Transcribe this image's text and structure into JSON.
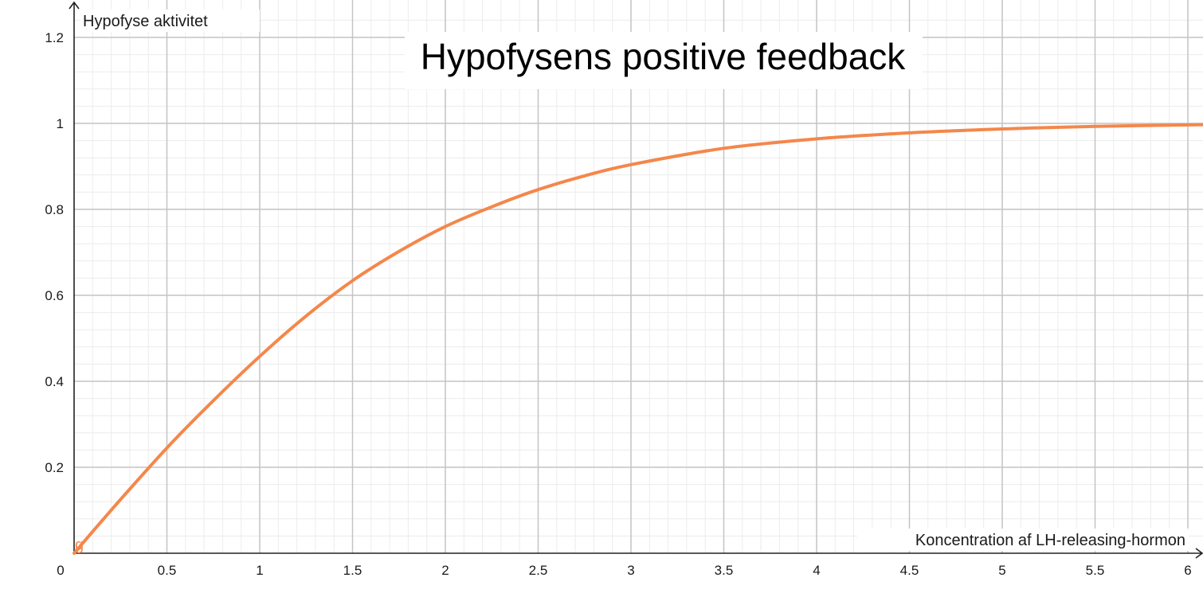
{
  "chart_data": {
    "type": "line",
    "title": "Hypofysens positive feedback",
    "xlabel": "Koncentration af LH-releasing-hormon",
    "ylabel": "Hypofyse aktivitet",
    "xlim": [
      0,
      6.1
    ],
    "ylim": [
      0,
      1.27
    ],
    "x_ticks": [
      "0.5",
      "1",
      "1.5",
      "2",
      "2.5",
      "3",
      "3.5",
      "4",
      "4.5",
      "5",
      "5.5",
      "6"
    ],
    "y_ticks": [
      "0.2",
      "0.4",
      "0.6",
      "0.8",
      "1",
      "1.2"
    ],
    "origin_label": "0",
    "grid": true,
    "series": [
      {
        "name": "g",
        "color": "#f4874b",
        "x": [
          0,
          0.25,
          0.5,
          0.75,
          1,
          1.25,
          1.5,
          1.75,
          2,
          2.25,
          2.5,
          2.75,
          3,
          3.5,
          4,
          4.5,
          5,
          5.5,
          6.1
        ],
        "y": [
          0,
          0.125,
          0.245,
          0.355,
          0.458,
          0.552,
          0.634,
          0.702,
          0.76,
          0.806,
          0.846,
          0.878,
          0.904,
          0.942,
          0.964,
          0.978,
          0.987,
          0.993,
          0.997
        ]
      }
    ]
  }
}
